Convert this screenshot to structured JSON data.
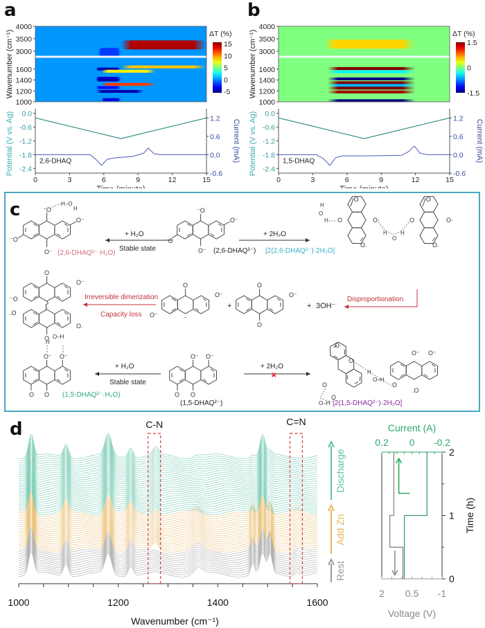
{
  "panels": {
    "a": {
      "label": "a"
    },
    "b": {
      "label": "b"
    },
    "c": {
      "label": "c"
    },
    "d": {
      "label": "d"
    }
  },
  "chart_data": [
    {
      "id": "a-heatmap",
      "type": "heatmap",
      "ylabel": "Wavenumber (cm⁻¹)",
      "yticks_upper": [
        "4000",
        "3500",
        "3000"
      ],
      "yticks_lower": [
        "1600",
        "1400",
        "1200",
        "1000"
      ],
      "ylim_upper": [
        2800,
        4000
      ],
      "ylim_lower": [
        1000,
        1800
      ],
      "xlim": [
        0,
        15
      ],
      "colorbar": {
        "title": "ΔT (%)",
        "ticks": [
          "15",
          "10",
          "5",
          "0",
          "-5"
        ],
        "range": [
          -6,
          16
        ]
      },
      "bands": [
        {
          "center": 3250,
          "t_start": 7.5,
          "t_end": 15,
          "value": 15
        },
        {
          "center": 2950,
          "t_start": 5.5,
          "t_end": 7.5,
          "value": -2
        },
        {
          "center": 1640,
          "t_start": 7.5,
          "t_end": 15,
          "value": 9
        },
        {
          "center": 1600,
          "t_start": 5.3,
          "t_end": 7.5,
          "value": -5
        },
        {
          "center": 1560,
          "t_start": 5.8,
          "t_end": 10.5,
          "value": 8
        },
        {
          "center": 1430,
          "t_start": 5.3,
          "t_end": 7.5,
          "value": -4
        },
        {
          "center": 1400,
          "t_start": 5.3,
          "t_end": 7.5,
          "value": -5
        },
        {
          "center": 1320,
          "t_start": 5.8,
          "t_end": 10.5,
          "value": 12
        },
        {
          "center": 1260,
          "t_start": 5.3,
          "t_end": 7.5,
          "value": -3
        },
        {
          "center": 1190,
          "t_start": 5.3,
          "t_end": 9.5,
          "value": -5
        },
        {
          "center": 1040,
          "t_start": 5.8,
          "t_end": 7.5,
          "value": -4
        }
      ]
    },
    {
      "id": "a-electrochem",
      "type": "line",
      "xlabel": "Time (minute)",
      "ylabel_left": "Potential (V vs. Ag)",
      "ylabel_right": "Current (mA)",
      "xticks": [
        "0",
        "3",
        "6",
        "9",
        "12",
        "15"
      ],
      "yticks_left": [
        "0.0",
        "-0.6",
        "-1.2",
        "-1.8",
        "-2.4"
      ],
      "yticks_right": [
        "1.2",
        "0.6",
        "0.0",
        "-0.6"
      ],
      "xlim": [
        0,
        15
      ],
      "ylim_left": [
        -2.6,
        0.2
      ],
      "ylim_right": [
        -0.6,
        1.5
      ],
      "annotation": "2,6-DHAQ",
      "series": [
        {
          "name": "Potential",
          "axis": "left",
          "x": [
            0,
            7.5,
            15
          ],
          "y": [
            -0.2,
            -1.1,
            -0.2
          ]
        },
        {
          "name": "Current",
          "axis": "right",
          "x": [
            0,
            4.8,
            5.3,
            5.8,
            6.3,
            7.0,
            8.5,
            9.5,
            9.9,
            10.4,
            11,
            15
          ],
          "y": [
            0,
            0,
            -0.15,
            -0.35,
            -0.15,
            -0.1,
            -0.06,
            0.05,
            0.22,
            0.03,
            0,
            0
          ]
        }
      ]
    },
    {
      "id": "b-heatmap",
      "type": "heatmap",
      "ylabel": "Wavenumber (cm⁻¹)",
      "yticks_upper": [
        "4000",
        "3500",
        "3000"
      ],
      "yticks_lower": [
        "1600",
        "1400",
        "1200",
        "1000"
      ],
      "ylim_upper": [
        2800,
        4000
      ],
      "ylim_lower": [
        1000,
        1800
      ],
      "xlim": [
        0,
        15
      ],
      "colorbar": {
        "title": "ΔT (%)",
        "ticks": [
          "1.5",
          "0",
          "-1.5"
        ],
        "range": [
          -1.5,
          1.5
        ]
      },
      "bands": [
        {
          "center": 3280,
          "t_start": 4,
          "t_end": 12,
          "value": 0.5
        },
        {
          "center": 1610,
          "t_start": 4.3,
          "t_end": 12,
          "value": 1.5
        },
        {
          "center": 1550,
          "t_start": 4.3,
          "t_end": 12,
          "value": -0.4
        },
        {
          "center": 1420,
          "t_start": 4.3,
          "t_end": 12,
          "value": -1.5
        },
        {
          "center": 1350,
          "t_start": 4.3,
          "t_end": 12,
          "value": 1.5
        },
        {
          "center": 1300,
          "t_start": 4.3,
          "t_end": 12,
          "value": -0.6
        },
        {
          "center": 1250,
          "t_start": 4.3,
          "t_end": 12,
          "value": 1.5
        },
        {
          "center": 1180,
          "t_start": 4.3,
          "t_end": 12,
          "value": 1.4
        },
        {
          "center": 1020,
          "t_start": 4.3,
          "t_end": 12,
          "value": -1.5
        }
      ]
    },
    {
      "id": "b-electrochem",
      "type": "line",
      "xlabel": "Time (minute)",
      "ylabel_left": "Potential (V vs. Ag)",
      "ylabel_right": "Current (mA)",
      "xticks": [
        "0",
        "3",
        "6",
        "9",
        "12",
        "15"
      ],
      "yticks_left": [
        "0.0",
        "-0.6",
        "-1.2",
        "-1.8",
        "-2.4"
      ],
      "yticks_right": [
        "1.2",
        "0.6",
        "0.0",
        "-0.6"
      ],
      "xlim": [
        0,
        15
      ],
      "ylim_left": [
        -2.6,
        0.2
      ],
      "ylim_right": [
        -0.6,
        1.5
      ],
      "annotation": "1,5-DHAQ",
      "series": [
        {
          "name": "Potential",
          "axis": "left",
          "x": [
            0,
            7.5,
            15
          ],
          "y": [
            -0.2,
            -1.1,
            -0.2
          ]
        },
        {
          "name": "Current",
          "axis": "right",
          "x": [
            0,
            3.3,
            3.9,
            4.5,
            5.0,
            5.6,
            7.5,
            10.8,
            11.4,
            11.9,
            12.4,
            13,
            15
          ],
          "y": [
            0,
            0,
            -0.12,
            -0.35,
            -0.1,
            -0.04,
            -0.04,
            -0.02,
            0.1,
            0.28,
            0.05,
            0,
            0
          ]
        }
      ]
    },
    {
      "id": "d-ftir",
      "type": "line",
      "xlabel": "Wavenumber (cm⁻¹)",
      "xticks": [
        "1000",
        "1200",
        "1400",
        "1600"
      ],
      "xlim": [
        1000,
        1600
      ],
      "annotations": [
        {
          "text": "C-N",
          "range": [
            1260,
            1285
          ]
        },
        {
          "text": "C=N",
          "range": [
            1545,
            1570
          ]
        }
      ],
      "stages": [
        {
          "name": "Rest",
          "color": "#9a9a9a",
          "traces": 12
        },
        {
          "name": "Add Zn",
          "color": "#e6b35a",
          "traces": 18
        },
        {
          "name": "Discharge",
          "color": "#5cc0a6",
          "traces": 28
        }
      ],
      "peaks": [
        1025,
        1095,
        1180,
        1225,
        1275,
        1360,
        1470,
        1490,
        1505,
        1560
      ]
    },
    {
      "id": "d-voltage-current",
      "type": "line",
      "xlabel_bottom": "Voltage (V)",
      "xlabel_top": "Current (A)",
      "ylabel": "Time (h)",
      "xticks_bottom": [
        "2",
        "0.5",
        "-1"
      ],
      "xticks_top": [
        "0.2",
        "0",
        "-0.2"
      ],
      "yticks": [
        "0",
        "1",
        "2"
      ],
      "xlim_voltage": [
        2,
        -1
      ],
      "xlim_current": [
        0.2,
        -0.2
      ],
      "ylim": [
        0,
        2
      ],
      "series": [
        {
          "name": "Voltage",
          "axis": "voltage",
          "color": "#888888",
          "t": [
            0,
            0.5,
            0.5,
            1.0,
            1.0,
            2.0
          ],
          "v": [
            0.95,
            0.95,
            1.6,
            1.6,
            1.4,
            1.4
          ]
        },
        {
          "name": "Current",
          "axis": "current",
          "color": "#3a9a78",
          "t": [
            0,
            1.0,
            1.0,
            2.0
          ],
          "i": [
            0.05,
            0.05,
            -0.1,
            -0.1
          ]
        }
      ]
    }
  ],
  "scheme": {
    "row1": {
      "left_product": "(2,6-DHAQ²⁻·H₂O)",
      "left_arrow_top": "+ H₂O",
      "left_arrow_bottom": "Stable state",
      "center": "(2,6-DHAQ²⁻)",
      "right_arrow_top": "+ 2H₂O",
      "right_product": "[2(2,6-DHAQ²⁻)·2H₂O]"
    },
    "row2": {
      "arrow_top": "Irreversible dimerization",
      "arrow_bottom": "Capacity loss",
      "plus1": "+",
      "plus2": "+",
      "hydroxide": "3OH⁻",
      "disprop": "Disproportionation"
    },
    "row3": {
      "left_product": "(1,5-DHAQ²⁻·H₂O)",
      "left_arrow_top": "+ H₂O",
      "left_arrow_bottom": "Stable state",
      "center": "(1,5-DHAQ²⁻)",
      "right_arrow_top": "+ 2H₂O",
      "blocked_mark": "✖",
      "right_product": "[2(1,5-DHAQ²⁻)·2H₂O]"
    },
    "colors": {
      "pink": "#d0707a",
      "cyan": "#3ab0c8",
      "red": "#c0303a",
      "green": "#2aaa7a",
      "purple": "#8a2a9a"
    }
  }
}
